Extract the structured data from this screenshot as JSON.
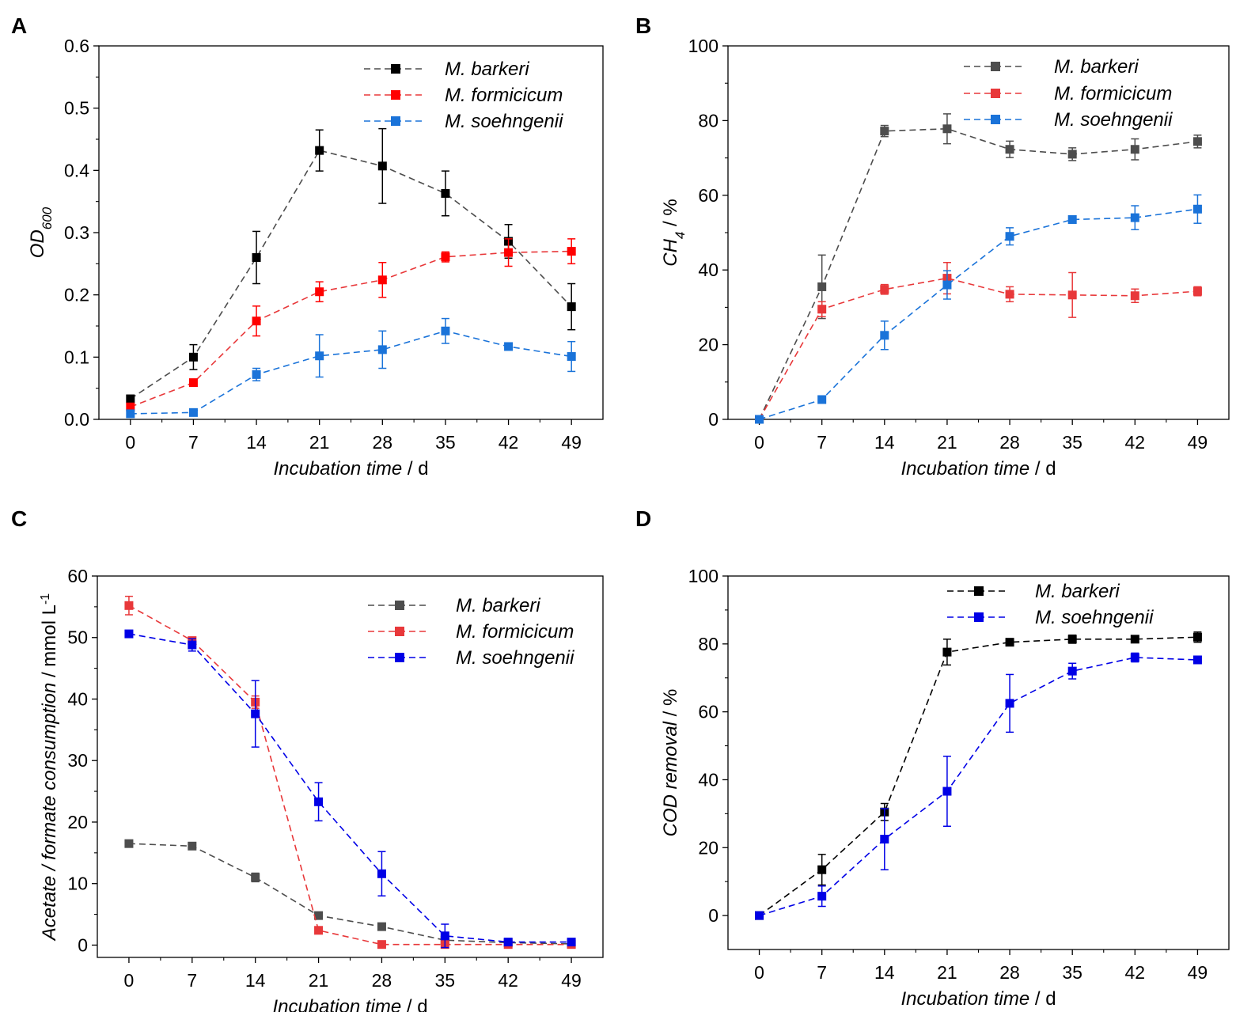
{
  "figure": {
    "x_title_main": "Incubation time",
    "x_title_unit": " / d"
  },
  "chart_data": [
    {
      "panel": "A",
      "type": "line",
      "ylabel": "OD600",
      "ylabel_main": "OD",
      "ylabel_sub": "600",
      "ylabel_suffix": "",
      "xlabel": "Incubation time / d",
      "x": [
        0,
        7,
        14,
        21,
        28,
        35,
        42,
        49
      ],
      "xlim": [
        -3.5,
        52.5
      ],
      "ylim": [
        0,
        0.6
      ],
      "yticks": [
        0.0,
        0.1,
        0.2,
        0.3,
        0.4,
        0.5,
        0.6
      ],
      "ytick_labels": [
        "0.0",
        "0.1",
        "0.2",
        "0.3",
        "0.4",
        "0.5",
        "0.6"
      ],
      "xtick_labels": [
        "0",
        "7",
        "14",
        "21",
        "28",
        "35",
        "42",
        "49"
      ],
      "legend": "top-right",
      "series": [
        {
          "name": "M. barkeri",
          "color": "#000000",
          "line_color": "#4d4d4d",
          "values": [
            0.033,
            0.1,
            0.26,
            0.432,
            0.407,
            0.363,
            0.286,
            0.181
          ],
          "errors": [
            0.005,
            0.02,
            0.042,
            0.033,
            0.06,
            0.036,
            0.027,
            0.037
          ]
        },
        {
          "name": "M. formicicum",
          "color": "#ff0000",
          "line_color": "#e8383a",
          "values": [
            0.02,
            0.059,
            0.158,
            0.205,
            0.224,
            0.261,
            0.268,
            0.27
          ],
          "errors": [
            0.003,
            0.005,
            0.024,
            0.016,
            0.028,
            0.008,
            0.022,
            0.02
          ]
        },
        {
          "name": "M. soehngenii",
          "color": "#1a73d9",
          "line_color": "#1a73d9",
          "values": [
            0.009,
            0.011,
            0.072,
            0.102,
            0.112,
            0.142,
            0.117,
            0.101
          ],
          "errors": [
            0.002,
            0.002,
            0.01,
            0.034,
            0.03,
            0.02,
            0.005,
            0.024
          ]
        }
      ]
    },
    {
      "panel": "B",
      "type": "line",
      "ylabel": "CH4 / %",
      "ylabel_main": "CH",
      "ylabel_sub": "4",
      "ylabel_suffix": " / %",
      "xlabel": "Incubation time / d",
      "x": [
        0,
        7,
        14,
        21,
        28,
        35,
        42,
        49
      ],
      "xlim": [
        -3.5,
        52.5
      ],
      "ylim": [
        0,
        100
      ],
      "yticks": [
        0,
        20,
        40,
        60,
        80,
        100
      ],
      "ytick_labels": [
        "0",
        "20",
        "40",
        "60",
        "80",
        "100"
      ],
      "xtick_labels": [
        "0",
        "7",
        "14",
        "21",
        "28",
        "35",
        "42",
        "49"
      ],
      "legend": "top-right",
      "series": [
        {
          "name": "M. barkeri",
          "color": "#4d4d4d",
          "line_color": "#4d4d4d",
          "values": [
            0,
            35.5,
            77.2,
            77.8,
            72.3,
            71.0,
            72.3,
            74.4
          ],
          "errors": [
            0,
            8.5,
            1.5,
            4.0,
            2.2,
            1.7,
            2.8,
            1.7
          ]
        },
        {
          "name": "M. formicicum",
          "color": "#e8383a",
          "line_color": "#e8383a",
          "values": [
            0,
            29.5,
            34.8,
            37.8,
            33.5,
            33.3,
            33.1,
            34.3
          ],
          "errors": [
            0,
            2.0,
            1.3,
            4.2,
            2.0,
            6.0,
            1.8,
            1.2
          ]
        },
        {
          "name": "M. soehngenii",
          "color": "#1a73d9",
          "line_color": "#1a73d9",
          "values": [
            0,
            5.3,
            22.5,
            36.0,
            49.0,
            53.5,
            54.0,
            56.3
          ],
          "errors": [
            0,
            0.8,
            3.8,
            3.8,
            2.3,
            0.6,
            3.2,
            3.8
          ]
        }
      ]
    },
    {
      "panel": "C",
      "type": "line",
      "ylabel": "Acetate / formate consumption / mmol L-1",
      "ylabel_main": "Acetate / formate consumption",
      "ylabel_unit": " / mmol L",
      "ylabel_sup": "-1",
      "xlabel": "Incubation time / d",
      "x": [
        0,
        7,
        14,
        21,
        28,
        35,
        42,
        49
      ],
      "xlim": [
        -3.5,
        52.5
      ],
      "ylim": [
        -2,
        60
      ],
      "yticks": [
        0,
        10,
        20,
        30,
        40,
        50,
        60
      ],
      "ytick_labels": [
        "0",
        "10",
        "20",
        "30",
        "40",
        "50",
        "60"
      ],
      "xtick_labels": [
        "0",
        "7",
        "14",
        "21",
        "28",
        "35",
        "42",
        "49"
      ],
      "legend": "top-right",
      "series": [
        {
          "name": "M. barkeri",
          "color": "#4d4d4d",
          "line_color": "#4d4d4d",
          "values": [
            16.5,
            16.1,
            11.0,
            4.8,
            3.0,
            0.8,
            0.4,
            0.2
          ],
          "errors": [
            0.3,
            0.3,
            0.7,
            0.3,
            0.3,
            0.2,
            0.2,
            0.1
          ]
        },
        {
          "name": "M. formicicum",
          "color": "#e8383a",
          "line_color": "#e8383a",
          "values": [
            55.2,
            49.5,
            39.5,
            2.4,
            0.1,
            0.1,
            0.1,
            0.1
          ],
          "errors": [
            1.5,
            0.5,
            1.0,
            0.3,
            0.1,
            0.1,
            0.1,
            0.1
          ]
        },
        {
          "name": "M. soehngenii",
          "color": "#0000e6",
          "line_color": "#0000e6",
          "values": [
            50.6,
            48.8,
            37.6,
            23.3,
            11.6,
            1.5,
            0.5,
            0.5
          ],
          "errors": [
            0.3,
            1.0,
            5.4,
            3.1,
            3.6,
            1.9,
            0.3,
            0.3
          ]
        }
      ]
    },
    {
      "panel": "D",
      "type": "line",
      "ylabel": "COD removal / %",
      "ylabel_main": "COD removal",
      "ylabel_suffix": " / %",
      "xlabel": "Incubation time / d",
      "x": [
        0,
        7,
        14,
        21,
        28,
        35,
        42,
        49
      ],
      "xlim": [
        -3.5,
        52.5
      ],
      "ylim": [
        -10,
        100
      ],
      "yticks": [
        0,
        20,
        40,
        60,
        80,
        100
      ],
      "ytick_labels": [
        "0",
        "20",
        "40",
        "60",
        "80",
        "100"
      ],
      "xtick_labels": [
        "0",
        "7",
        "14",
        "21",
        "28",
        "35",
        "42",
        "49"
      ],
      "legend": "top-right",
      "series": [
        {
          "name": "M. barkeri",
          "color": "#000000",
          "line_color": "#000000",
          "values": [
            0,
            13.5,
            30.5,
            77.6,
            80.5,
            81.4,
            81.4,
            82.0
          ],
          "errors": [
            0,
            4.5,
            2.5,
            3.8,
            0.8,
            1.2,
            0.7,
            1.5
          ]
        },
        {
          "name": "M. soehngenii",
          "color": "#0000e6",
          "line_color": "#0000e6",
          "values": [
            0,
            5.7,
            22.5,
            36.6,
            62.5,
            72.0,
            76.0,
            75.3
          ],
          "errors": [
            0,
            3.0,
            9.0,
            10.3,
            8.5,
            2.3,
            1.3,
            0.8
          ]
        }
      ]
    }
  ]
}
